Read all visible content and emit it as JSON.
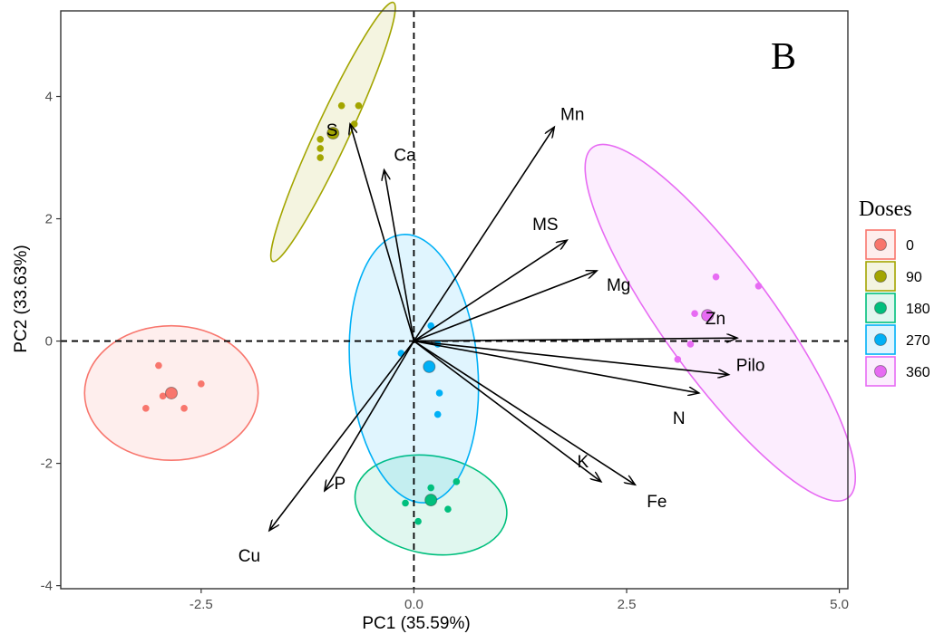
{
  "chart_data": {
    "type": "scatter",
    "panel_label": "B",
    "xlabel": "PC1 (35.59%)",
    "ylabel": "PC2 (33.63%)",
    "xlim": [
      -4.15,
      5.1
    ],
    "ylim": [
      -4.05,
      5.4
    ],
    "xticks": [
      -2.5,
      0.0,
      2.5,
      5.0
    ],
    "xtick_labels": [
      "-2.5",
      "0.0",
      "2.5",
      "5.0"
    ],
    "yticks": [
      -4,
      -2,
      0,
      2,
      4
    ],
    "ytick_labels": [
      "-4",
      "-2",
      "0",
      "2",
      "4"
    ],
    "grid": false,
    "reference_lines": {
      "x": 0,
      "y": 0,
      "style": "dashed"
    },
    "legend": {
      "title": "Doses",
      "position": "right",
      "entries": [
        "0",
        "90",
        "180",
        "270",
        "360"
      ]
    },
    "series": [
      {
        "name": "0",
        "color": "#F8766D",
        "points": [
          [
            -3.15,
            -1.1
          ],
          [
            -3.0,
            -0.4
          ],
          [
            -2.95,
            -0.9
          ],
          [
            -2.7,
            -1.1
          ],
          [
            -2.5,
            -0.7
          ]
        ],
        "centroid": [
          -2.85,
          -0.85
        ],
        "ellipse": {
          "center": [
            -2.85,
            -0.85
          ],
          "rx": 1.02,
          "ry": 1.1,
          "angle": 0
        }
      },
      {
        "name": "90",
        "color": "#A3A500",
        "points": [
          [
            -1.1,
            3.15
          ],
          [
            -1.1,
            3.3
          ],
          [
            -1.1,
            3.0
          ],
          [
            -0.85,
            3.85
          ],
          [
            -0.65,
            3.85
          ],
          [
            -0.7,
            3.55
          ]
        ],
        "centroid": [
          -0.95,
          3.4
        ],
        "ellipse": {
          "center": [
            -0.95,
            3.42
          ],
          "rx": 1.68,
          "ry": 0.27,
          "angle": 65
        }
      },
      {
        "name": "180",
        "color": "#00BF7D",
        "points": [
          [
            -0.1,
            -2.65
          ],
          [
            0.2,
            -2.4
          ],
          [
            0.5,
            -2.3
          ],
          [
            0.4,
            -2.75
          ],
          [
            0.05,
            -2.95
          ]
        ],
        "centroid": [
          0.2,
          -2.6
        ],
        "ellipse": {
          "center": [
            0.2,
            -2.68
          ],
          "rx": 0.9,
          "ry": 0.8,
          "angle": -10
        }
      },
      {
        "name": "270",
        "color": "#00B0F6",
        "points": [
          [
            -0.15,
            -0.2
          ],
          [
            0.2,
            0.25
          ],
          [
            0.28,
            -0.05
          ],
          [
            0.3,
            -0.85
          ],
          [
            0.28,
            -1.2
          ]
        ],
        "centroid": [
          0.18,
          -0.42
        ],
        "ellipse": {
          "center": [
            0.0,
            -0.45
          ],
          "rx": 0.75,
          "ry": 2.2,
          "angle": 5
        }
      },
      {
        "name": "360",
        "color": "#E76BF3",
        "points": [
          [
            3.55,
            1.05
          ],
          [
            4.05,
            0.9
          ],
          [
            3.3,
            0.45
          ],
          [
            3.25,
            -0.05
          ],
          [
            3.1,
            -0.3
          ]
        ],
        "centroid": [
          3.45,
          0.42
        ],
        "ellipse": {
          "center": [
            3.6,
            0.3
          ],
          "rx": 2.55,
          "ry": 0.9,
          "angle": -54
        }
      }
    ],
    "loadings": [
      {
        "label": "Mn",
        "x": 1.65,
        "y": 3.5
      },
      {
        "label": "Ca",
        "x": -0.35,
        "y": 2.8
      },
      {
        "label": "S",
        "x": -0.75,
        "y": 3.55
      },
      {
        "label": "MS",
        "x": 1.8,
        "y": 1.65
      },
      {
        "label": "Mg",
        "x": 2.15,
        "y": 1.15
      },
      {
        "label": "Zn",
        "x": 3.8,
        "y": 0.05
      },
      {
        "label": "Pilo",
        "x": 3.7,
        "y": -0.55
      },
      {
        "label": "N",
        "x": 3.35,
        "y": -0.85
      },
      {
        "label": "K",
        "x": 2.2,
        "y": -2.3
      },
      {
        "label": "Fe",
        "x": 2.6,
        "y": -2.35
      },
      {
        "label": "P",
        "x": -1.05,
        "y": -2.45
      },
      {
        "label": "Cu",
        "x": -1.7,
        "y": -3.1
      }
    ]
  }
}
